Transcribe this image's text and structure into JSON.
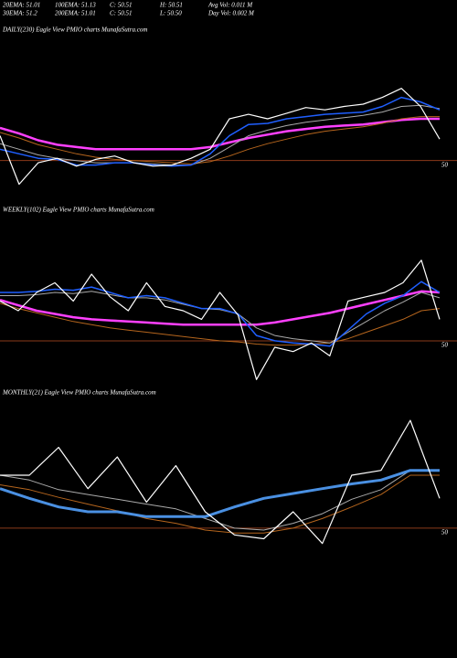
{
  "header": {
    "lines": [
      [
        "20EMA: 51.01",
        "100EMA: 51.13",
        "C: 50.51",
        "H: 50.51",
        "Avg Vol: 0.011  M"
      ],
      [
        "30EMA: 51.2",
        "200EMA: 51.01",
        "C: 50.51",
        "L: 50.50",
        "Day Vol: 0.002  M"
      ]
    ]
  },
  "chart_data": [
    {
      "type": "line",
      "title": "DAILY(230) Eagle   View   PMIO charts MunafaSutra.com",
      "categories": [
        null,
        null,
        null,
        null,
        null,
        null,
        null,
        null,
        null,
        null,
        null,
        null,
        null,
        null,
        null,
        null,
        null,
        null,
        null,
        null,
        null,
        null,
        null,
        null
      ],
      "ylim": [
        49.6,
        51.1
      ],
      "yticks": [
        50
      ],
      "grid": true,
      "grid_color": "#8b3a1a",
      "series": [
        {
          "color": "#ff40ff",
          "width": 2.5,
          "values": [
            50.29,
            50.24,
            50.18,
            50.14,
            50.12,
            50.1,
            50.1,
            50.1,
            50.1,
            50.1,
            50.1,
            50.12,
            50.16,
            50.2,
            50.23,
            50.26,
            50.28,
            50.3,
            50.31,
            50.32,
            50.34,
            50.36,
            50.37,
            50.37
          ]
        },
        {
          "color": "#b5651d",
          "width": 1,
          "values": [
            50.25,
            50.2,
            50.14,
            50.1,
            50.06,
            50.03,
            50.01,
            50.0,
            49.99,
            49.98,
            49.97,
            49.99,
            50.04,
            50.1,
            50.15,
            50.19,
            50.23,
            50.26,
            50.28,
            50.3,
            50.33,
            50.37,
            50.39,
            50.39
          ]
        },
        {
          "color": "#aaaaaa",
          "width": 1,
          "values": [
            50.15,
            50.1,
            50.05,
            50.02,
            50.0,
            49.98,
            49.98,
            49.98,
            49.97,
            49.96,
            49.96,
            50.02,
            50.12,
            50.22,
            50.27,
            50.31,
            50.34,
            50.36,
            50.38,
            50.4,
            50.43,
            50.48,
            50.49,
            50.46
          ]
        },
        {
          "color": "#1f5fff",
          "width": 1.5,
          "values": [
            50.1,
            50.06,
            50.02,
            50.01,
            49.96,
            49.96,
            49.98,
            49.98,
            49.96,
            49.95,
            49.96,
            50.06,
            50.22,
            50.32,
            50.33,
            50.37,
            50.39,
            50.41,
            50.42,
            50.43,
            50.48,
            50.56,
            50.52,
            50.45
          ]
        },
        {
          "color": "#ffffff",
          "width": 1.2,
          "values": [
            50.22,
            49.79,
            49.98,
            50.02,
            49.95,
            50.01,
            50.04,
            49.98,
            49.95,
            49.96,
            50.02,
            50.1,
            50.37,
            50.41,
            50.37,
            50.42,
            50.47,
            50.45,
            50.48,
            50.5,
            50.56,
            50.64,
            50.48,
            50.19
          ]
        }
      ]
    },
    {
      "type": "line",
      "title": "WEEKLY(102) Eagle   View   PMIO charts MunafaSutra.com",
      "categories": [
        null,
        null,
        null,
        null,
        null,
        null,
        null,
        null,
        null,
        null,
        null,
        null,
        null,
        null,
        null,
        null,
        null,
        null,
        null,
        null,
        null,
        null,
        null,
        null,
        null
      ],
      "ylim": [
        49.6,
        51.13
      ],
      "yticks": [
        50
      ],
      "grid": true,
      "grid_color": "#8b3a1a",
      "series": [
        {
          "color": "#ff40ff",
          "width": 2.5,
          "values": [
            50.38,
            50.33,
            50.28,
            50.25,
            50.22,
            50.2,
            50.19,
            50.18,
            50.17,
            50.16,
            50.15,
            50.15,
            50.15,
            50.15,
            50.15,
            50.17,
            50.2,
            50.23,
            50.26,
            50.3,
            50.34,
            50.38,
            50.42,
            50.46,
            50.45
          ]
        },
        {
          "color": "#b5651d",
          "width": 1,
          "values": [
            50.35,
            50.3,
            50.26,
            50.22,
            50.18,
            50.15,
            50.12,
            50.1,
            50.08,
            50.06,
            50.04,
            50.02,
            50.0,
            49.99,
            49.97,
            49.96,
            49.96,
            49.97,
            49.98,
            50.02,
            50.08,
            50.14,
            50.2,
            50.28,
            50.3
          ]
        },
        {
          "color": "#aaaaaa",
          "width": 1,
          "values": [
            50.42,
            50.42,
            50.43,
            50.45,
            50.44,
            50.46,
            50.43,
            50.4,
            50.4,
            50.38,
            50.34,
            50.3,
            50.29,
            50.25,
            50.12,
            50.05,
            50.02,
            50.0,
            49.98,
            50.08,
            50.18,
            50.28,
            50.36,
            50.45,
            50.4
          ]
        },
        {
          "color": "#1f5fff",
          "width": 1.5,
          "values": [
            50.45,
            50.45,
            50.46,
            50.48,
            50.47,
            50.5,
            50.45,
            50.4,
            50.42,
            50.4,
            50.35,
            50.3,
            50.3,
            50.25,
            50.05,
            50.0,
            49.98,
            49.97,
            49.95,
            50.1,
            50.25,
            50.35,
            50.42,
            50.55,
            50.45
          ]
        },
        {
          "color": "#ffffff",
          "width": 1.2,
          "values": [
            50.37,
            50.28,
            50.45,
            50.54,
            50.37,
            50.62,
            50.41,
            50.28,
            50.54,
            50.32,
            50.28,
            50.2,
            50.45,
            50.24,
            49.64,
            49.94,
            49.9,
            49.98,
            49.86,
            50.37,
            50.41,
            50.45,
            50.54,
            50.75,
            50.2
          ]
        }
      ]
    },
    {
      "type": "line",
      "title": "MONTHLY(21) Eagle   View   PMIO charts MunafaSutra.com",
      "categories": [
        null,
        null,
        null,
        null,
        null,
        null,
        null,
        null,
        null,
        null,
        null,
        null,
        null,
        null,
        null,
        null
      ],
      "ylim": [
        49.6,
        51.31
      ],
      "yticks": [
        50
      ],
      "grid": true,
      "grid_color": "#8b3a1a",
      "series": [
        {
          "color": "#b5651d",
          "width": 1,
          "values": [
            50.45,
            50.4,
            50.32,
            50.25,
            50.18,
            50.1,
            50.05,
            49.98,
            49.95,
            49.95,
            50.0,
            50.1,
            50.22,
            50.35,
            50.55,
            50.55
          ]
        },
        {
          "color": "#aaaaaa",
          "width": 1,
          "values": [
            50.55,
            50.5,
            50.4,
            50.35,
            50.3,
            50.25,
            50.2,
            50.1,
            50.0,
            49.98,
            50.05,
            50.15,
            50.3,
            50.4,
            50.6,
            50.6
          ]
        },
        {
          "color": "#4a90e2",
          "width": 3,
          "values": [
            50.41,
            50.31,
            50.22,
            50.17,
            50.17,
            50.12,
            50.12,
            50.12,
            50.22,
            50.31,
            50.36,
            50.41,
            50.46,
            50.5,
            50.6,
            50.6
          ]
        },
        {
          "color": "#ffffff",
          "width": 1.2,
          "values": [
            50.55,
            50.55,
            50.84,
            50.41,
            50.74,
            50.27,
            50.65,
            50.17,
            49.93,
            49.89,
            50.17,
            49.84,
            50.55,
            50.6,
            51.12,
            50.31
          ]
        }
      ]
    }
  ]
}
